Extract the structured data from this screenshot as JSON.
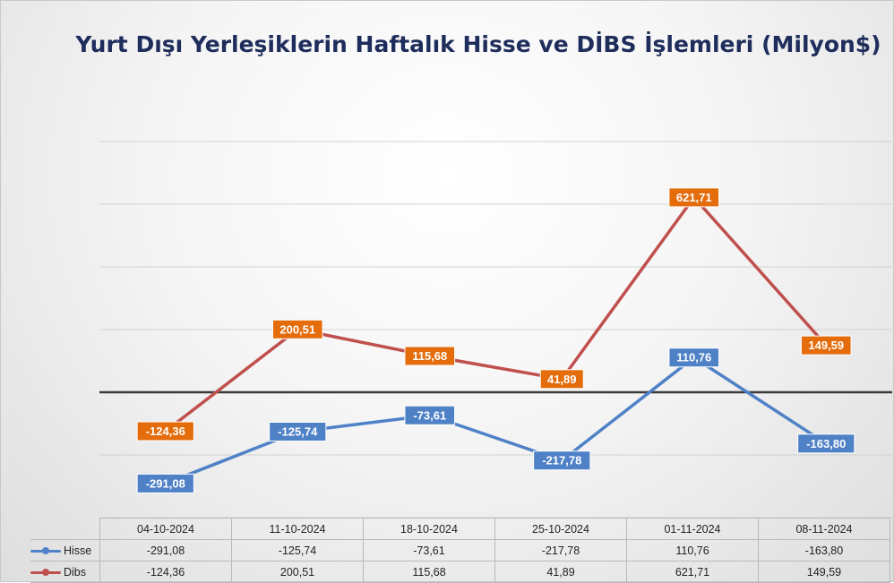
{
  "chart_data": {
    "type": "line",
    "title": "Yurt Dışı Yerleşiklerin Haftalık Hisse ve DİBS İşlemleri (Milyon$)",
    "categories": [
      "04-10-2024",
      "11-10-2024",
      "18-10-2024",
      "25-10-2024",
      "01-11-2024",
      "08-11-2024"
    ],
    "series": [
      {
        "name": "Hisse",
        "color": "#4f81c7",
        "label_color": "#4f81c7",
        "values": [
          -291.08,
          -125.74,
          -73.61,
          -217.78,
          110.76,
          -163.8
        ],
        "labels": [
          "-291,08",
          "-125,74",
          "-73,61",
          "-217,78",
          "110,76",
          "-163,80"
        ]
      },
      {
        "name": "Dibs",
        "color": "#c0504d",
        "label_color": "#e46c0a",
        "values": [
          -124.36,
          200.51,
          115.68,
          41.89,
          621.71,
          149.59
        ],
        "labels": [
          "-124,36",
          "200,51",
          "115,68",
          "41,89",
          "621,71",
          "149,59"
        ]
      }
    ],
    "ylim": [
      -400,
      800
    ],
    "gridlines": [
      -200,
      200,
      400,
      600,
      800
    ],
    "zero_line": true,
    "legend": "data-table",
    "data_table": true
  }
}
